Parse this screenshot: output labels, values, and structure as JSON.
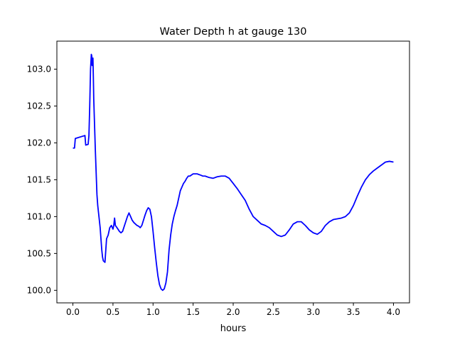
{
  "chart_data": {
    "type": "line",
    "title": "Water Depth h at gauge 130",
    "xlabel": "hours",
    "ylabel": "",
    "xlim": [
      -0.2,
      4.2
    ],
    "ylim": [
      99.83,
      103.38
    ],
    "xticks": [
      0.0,
      0.5,
      1.0,
      1.5,
      2.0,
      2.5,
      3.0,
      3.5,
      4.0
    ],
    "xtick_labels": [
      "0.0",
      "0.5",
      "1.0",
      "1.5",
      "2.0",
      "2.5",
      "3.0",
      "3.5",
      "4.0"
    ],
    "yticks": [
      100.0,
      100.5,
      101.0,
      101.5,
      102.0,
      102.5,
      103.0
    ],
    "ytick_labels": [
      "100.0",
      "100.5",
      "101.0",
      "101.5",
      "102.0",
      "102.5",
      "103.0"
    ],
    "grid": false,
    "series": [
      {
        "color": "#0000ff",
        "x": [
          0.0,
          0.02,
          0.03,
          0.15,
          0.16,
          0.19,
          0.2,
          0.21,
          0.22,
          0.23,
          0.235,
          0.24,
          0.25,
          0.255,
          0.26,
          0.28,
          0.3,
          0.31,
          0.32,
          0.33,
          0.34,
          0.35,
          0.36,
          0.37,
          0.38,
          0.4,
          0.42,
          0.44,
          0.46,
          0.48,
          0.5,
          0.51,
          0.52,
          0.53,
          0.55,
          0.58,
          0.6,
          0.62,
          0.65,
          0.68,
          0.7,
          0.72,
          0.74,
          0.76,
          0.78,
          0.8,
          0.82,
          0.84,
          0.86,
          0.88,
          0.9,
          0.92,
          0.94,
          0.96,
          0.98,
          1.0,
          1.02,
          1.04,
          1.06,
          1.08,
          1.1,
          1.12,
          1.14,
          1.16,
          1.18,
          1.2,
          1.22,
          1.24,
          1.26,
          1.28,
          1.3,
          1.32,
          1.34,
          1.36,
          1.38,
          1.4,
          1.42,
          1.44,
          1.46,
          1.5,
          1.55,
          1.6,
          1.62,
          1.65,
          1.7,
          1.75,
          1.8,
          1.85,
          1.9,
          1.95,
          2.0,
          2.05,
          2.1,
          2.15,
          2.2,
          2.25,
          2.3,
          2.35,
          2.4,
          2.45,
          2.5,
          2.55,
          2.6,
          2.65,
          2.7,
          2.75,
          2.8,
          2.85,
          2.9,
          2.95,
          3.0,
          3.05,
          3.1,
          3.15,
          3.2,
          3.25,
          3.3,
          3.35,
          3.4,
          3.45,
          3.5,
          3.55,
          3.6,
          3.65,
          3.7,
          3.75,
          3.8,
          3.85,
          3.9,
          3.95,
          4.0
        ],
        "y": [
          101.93,
          101.93,
          102.06,
          102.1,
          101.97,
          101.98,
          102.1,
          102.5,
          103.0,
          103.2,
          103.18,
          103.05,
          103.15,
          102.9,
          102.6,
          101.9,
          101.3,
          101.15,
          101.05,
          100.95,
          100.85,
          100.7,
          100.55,
          100.45,
          100.4,
          100.38,
          100.7,
          100.75,
          100.85,
          100.88,
          100.83,
          100.88,
          100.98,
          100.88,
          100.85,
          100.8,
          100.78,
          100.8,
          100.9,
          101.0,
          101.05,
          101.0,
          100.95,
          100.92,
          100.9,
          100.88,
          100.87,
          100.85,
          100.88,
          100.95,
          101.02,
          101.08,
          101.12,
          101.1,
          101.0,
          100.8,
          100.58,
          100.38,
          100.2,
          100.08,
          100.02,
          100.0,
          100.02,
          100.1,
          100.25,
          100.55,
          100.75,
          100.9,
          101.0,
          101.08,
          101.15,
          101.25,
          101.35,
          101.4,
          101.45,
          101.48,
          101.52,
          101.55,
          101.55,
          101.58,
          101.58,
          101.56,
          101.55,
          101.55,
          101.53,
          101.52,
          101.54,
          101.55,
          101.55,
          101.52,
          101.45,
          101.38,
          101.3,
          101.22,
          101.1,
          101.0,
          100.95,
          100.9,
          100.88,
          100.85,
          100.8,
          100.75,
          100.73,
          100.75,
          100.82,
          100.9,
          100.93,
          100.93,
          100.88,
          100.82,
          100.78,
          100.76,
          100.8,
          100.88,
          100.93,
          100.96,
          100.97,
          100.98,
          101.0,
          101.05,
          101.15,
          101.28,
          101.4,
          101.5,
          101.57,
          101.62,
          101.66,
          101.7,
          101.74,
          101.75,
          101.74
        ],
        "x_note": "",
        "y_note": ""
      }
    ]
  }
}
